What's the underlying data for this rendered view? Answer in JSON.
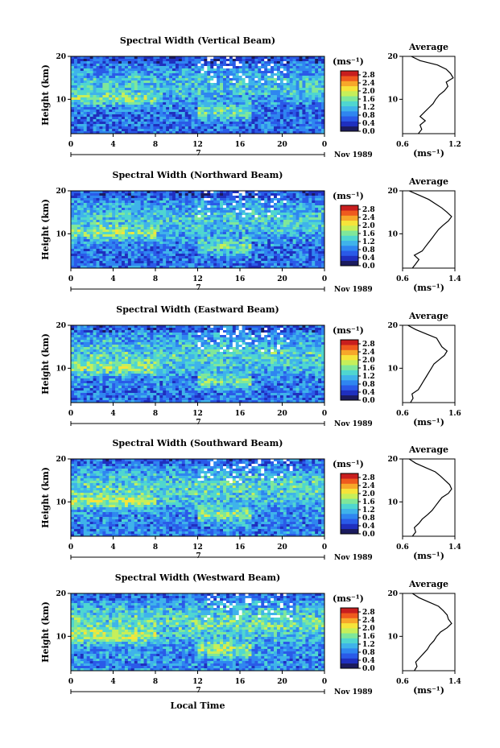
{
  "chart_data": {
    "type": "heatmap",
    "xlabel": "Local Time",
    "date_label": "Nov 1989",
    "day_label": "7",
    "x_ticks": [
      "0",
      "4",
      "8",
      "12",
      "16",
      "20",
      "0"
    ],
    "x_range_hours": [
      0,
      24
    ],
    "y_range_km": [
      2,
      20
    ],
    "y_ticks": [
      "10",
      "20"
    ],
    "ylabel": "Height (km)",
    "colorbar": {
      "unit": "(ms⁻¹)",
      "ticks": [
        "0.0",
        "0.4",
        "0.8",
        "1.2",
        "1.6",
        "2.0",
        "2.4",
        "2.8"
      ],
      "range": [
        0.0,
        3.0
      ]
    },
    "panels": [
      {
        "title": "Spectral Width (Vertical Beam)",
        "average": {
          "title": "Average",
          "xlim": [
            0.6,
            1.2
          ],
          "x_ticks": [
            "0.6",
            "1.2"
          ],
          "xlabel": "(ms⁻¹)",
          "profile": [
            [
              2,
              0.78
            ],
            [
              3,
              0.82
            ],
            [
              4,
              0.8
            ],
            [
              5,
              0.86
            ],
            [
              6,
              0.8
            ],
            [
              7,
              0.85
            ],
            [
              8,
              0.9
            ],
            [
              9,
              0.95
            ],
            [
              10,
              0.98
            ],
            [
              11,
              1.02
            ],
            [
              12,
              1.08
            ],
            [
              13,
              1.12
            ],
            [
              14,
              1.1
            ],
            [
              15,
              1.18
            ],
            [
              16,
              1.15
            ],
            [
              17,
              1.1
            ],
            [
              18,
              1.0
            ],
            [
              19,
              0.8
            ],
            [
              20,
              0.7
            ]
          ]
        }
      },
      {
        "title": "Spectral Width (Northward Beam)",
        "average": {
          "title": "Average",
          "xlim": [
            0.6,
            1.4
          ],
          "x_ticks": [
            "0.6",
            "1.4"
          ],
          "xlabel": "(ms⁻¹)",
          "profile": [
            [
              2,
              0.75
            ],
            [
              3,
              0.8
            ],
            [
              4,
              0.85
            ],
            [
              5,
              0.78
            ],
            [
              6,
              0.9
            ],
            [
              7,
              0.95
            ],
            [
              8,
              1.0
            ],
            [
              9,
              1.05
            ],
            [
              10,
              1.1
            ],
            [
              11,
              1.15
            ],
            [
              12,
              1.22
            ],
            [
              13,
              1.3
            ],
            [
              14,
              1.35
            ],
            [
              15,
              1.28
            ],
            [
              16,
              1.2
            ],
            [
              17,
              1.1
            ],
            [
              18,
              1.0
            ],
            [
              19,
              0.85
            ],
            [
              20,
              0.7
            ]
          ]
        }
      },
      {
        "title": "Spectral Width (Eastward Beam)",
        "average": {
          "title": "Average",
          "xlim": [
            0.6,
            1.6
          ],
          "x_ticks": [
            "0.6",
            "1.6"
          ],
          "xlabel": "(ms⁻¹)",
          "profile": [
            [
              2,
              0.75
            ],
            [
              3,
              0.8
            ],
            [
              4,
              0.78
            ],
            [
              5,
              0.9
            ],
            [
              6,
              0.95
            ],
            [
              7,
              1.0
            ],
            [
              8,
              1.05
            ],
            [
              9,
              1.1
            ],
            [
              10,
              1.15
            ],
            [
              11,
              1.2
            ],
            [
              12,
              1.3
            ],
            [
              13,
              1.4
            ],
            [
              14,
              1.45
            ],
            [
              15,
              1.35
            ],
            [
              16,
              1.3
            ],
            [
              17,
              1.25
            ],
            [
              18,
              1.05
            ],
            [
              19,
              0.85
            ],
            [
              20,
              0.7
            ]
          ]
        }
      },
      {
        "title": "Spectral Width (Southward Beam)",
        "average": {
          "title": "Average",
          "xlim": [
            0.6,
            1.4
          ],
          "x_ticks": [
            "0.6",
            "1.4"
          ],
          "xlabel": "(ms⁻¹)",
          "profile": [
            [
              2,
              0.75
            ],
            [
              3,
              0.8
            ],
            [
              4,
              0.78
            ],
            [
              5,
              0.85
            ],
            [
              6,
              0.9
            ],
            [
              7,
              0.98
            ],
            [
              8,
              1.05
            ],
            [
              9,
              1.1
            ],
            [
              10,
              1.15
            ],
            [
              11,
              1.2
            ],
            [
              12,
              1.3
            ],
            [
              13,
              1.35
            ],
            [
              14,
              1.32
            ],
            [
              15,
              1.25
            ],
            [
              16,
              1.18
            ],
            [
              17,
              1.1
            ],
            [
              18,
              0.95
            ],
            [
              19,
              0.8
            ],
            [
              20,
              0.7
            ]
          ]
        }
      },
      {
        "title": "Spectral Width (Westward Beam)",
        "average": {
          "title": "Average",
          "xlim": [
            0.6,
            1.4
          ],
          "x_ticks": [
            "0.6",
            "1.4"
          ],
          "xlabel": "(ms⁻¹)",
          "profile": [
            [
              2,
              0.78
            ],
            [
              3,
              0.82
            ],
            [
              4,
              0.8
            ],
            [
              5,
              0.86
            ],
            [
              6,
              0.92
            ],
            [
              7,
              0.98
            ],
            [
              8,
              1.02
            ],
            [
              9,
              1.08
            ],
            [
              10,
              1.12
            ],
            [
              11,
              1.18
            ],
            [
              12,
              1.28
            ],
            [
              13,
              1.35
            ],
            [
              14,
              1.3
            ],
            [
              15,
              1.28
            ],
            [
              16,
              1.22
            ],
            [
              17,
              1.15
            ],
            [
              18,
              1.0
            ],
            [
              19,
              0.85
            ],
            [
              20,
              0.75
            ]
          ]
        }
      }
    ]
  },
  "colors": {
    "colormap": [
      "#1b1b5e",
      "#1f2fbf",
      "#2a5ae8",
      "#2f86f0",
      "#3fb3ea",
      "#4fd6d0",
      "#7fe79a",
      "#c6ef5a",
      "#f6e43a",
      "#f7a72a",
      "#ef5a1e",
      "#c81e1e"
    ]
  }
}
